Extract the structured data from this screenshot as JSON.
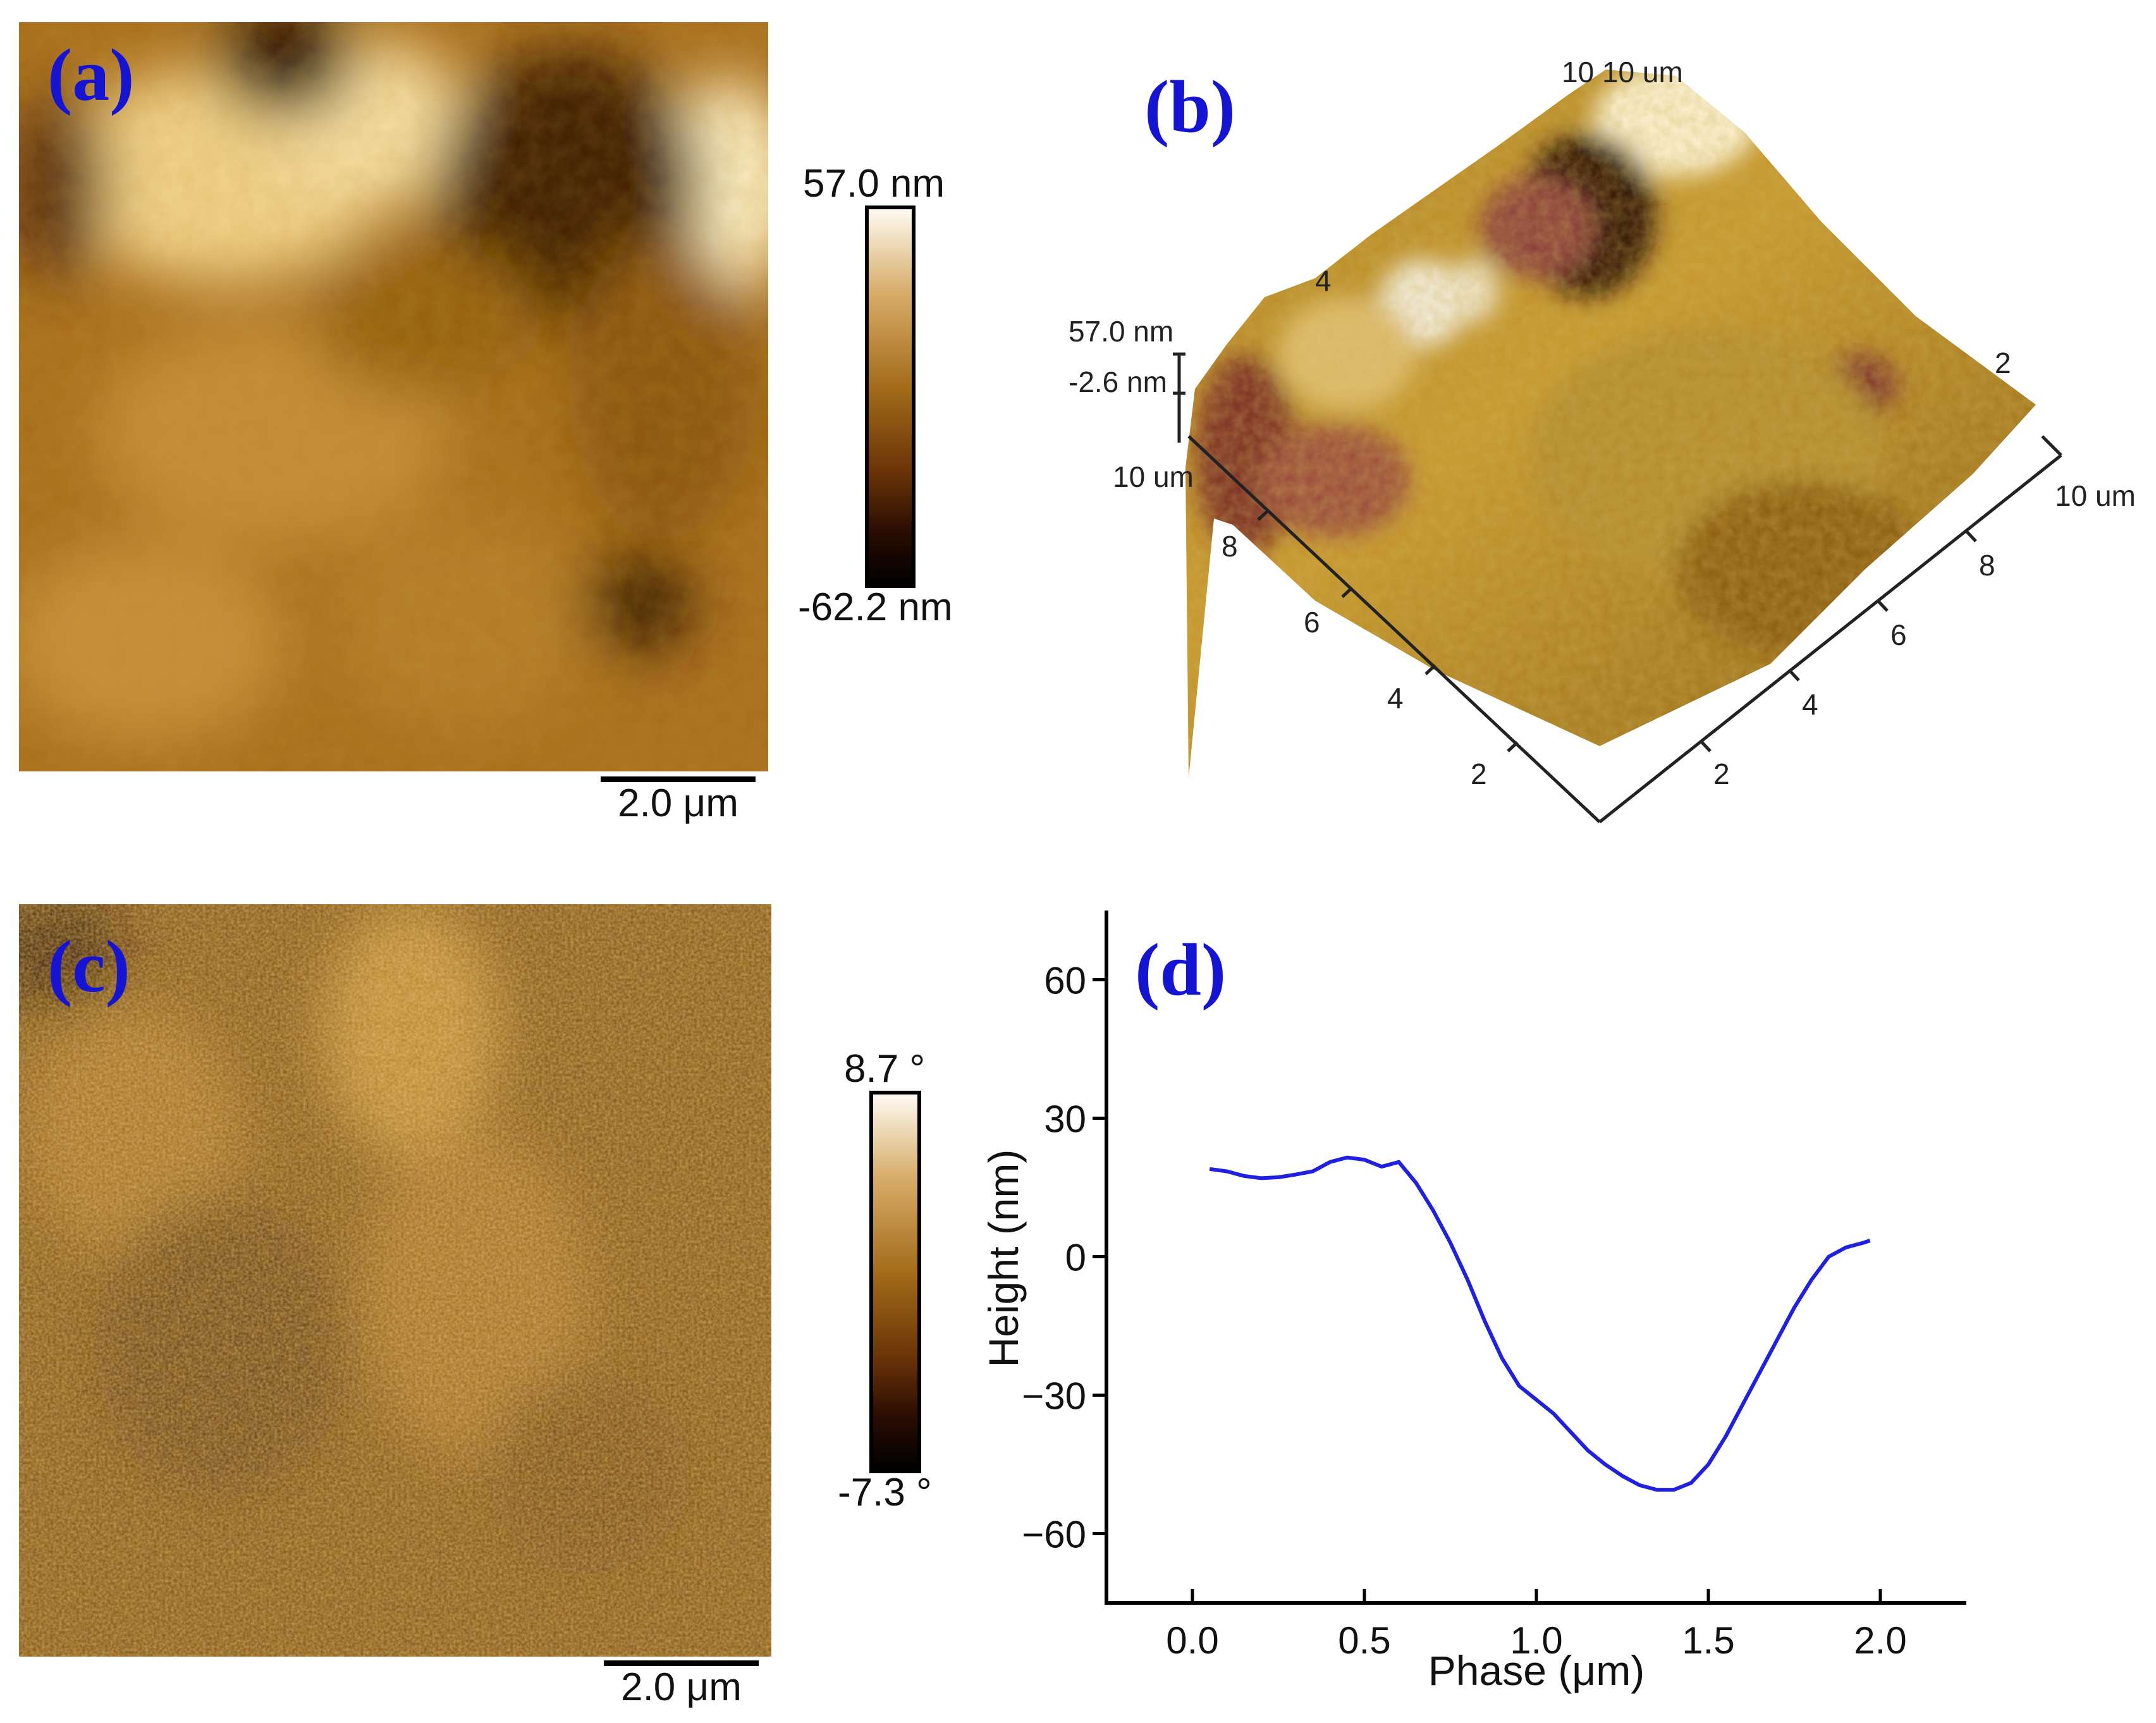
{
  "panels": {
    "a": {
      "label": "(a)",
      "scalebar": "2.0 μm",
      "colorbar_max": "57.0 nm",
      "colorbar_min": "-62.2 nm"
    },
    "b": {
      "label": "(b)",
      "z_max": "57.0 nm",
      "z_mid": "-2.6 nm",
      "corner_label": "10 10 um",
      "left_axis_end": "10 um",
      "right_axis_end": "10 um",
      "left_ticks": [
        "8",
        "6",
        "4",
        "2"
      ],
      "right_ticks": [
        "2",
        "4",
        "6",
        "8"
      ],
      "back_ticks": [
        "4",
        "2"
      ]
    },
    "c": {
      "label": "(c)",
      "scalebar": "2.0 μm",
      "colorbar_max": "8.7 °",
      "colorbar_min": "-7.3 °"
    },
    "d": {
      "label": "(d)"
    }
  },
  "palette": {
    "afm_dark": "#1a0a00",
    "afm_mid": "#a86a10",
    "afm_light": "#fff6e0",
    "curve": "#2020e0",
    "label_blue": "#1414d2"
  },
  "chart_data": {
    "type": "line",
    "xlabel": "Phase (μm)",
    "ylabel": "Height (nm)",
    "xlim": [
      -0.25,
      2.25
    ],
    "ylim": [
      -75,
      75
    ],
    "xticks": [
      "0.0",
      "0.5",
      "1.0",
      "1.5",
      "2.0"
    ],
    "yticks": [
      "-60",
      "-30",
      "0",
      "30",
      "60"
    ],
    "series": [
      {
        "x": [
          0.05,
          0.1,
          0.15,
          0.2,
          0.25,
          0.3,
          0.35,
          0.4,
          0.45,
          0.5,
          0.55,
          0.6,
          0.65,
          0.7,
          0.75,
          0.8,
          0.85,
          0.9,
          0.95,
          1.0,
          1.05,
          1.1,
          1.15,
          1.2,
          1.25,
          1.3,
          1.35,
          1.4,
          1.45,
          1.5,
          1.55,
          1.6,
          1.65,
          1.7,
          1.75,
          1.8,
          1.85,
          1.9,
          1.95,
          1.97
        ],
        "y": [
          19,
          18.5,
          17.5,
          17,
          17.2,
          17.8,
          18.5,
          20.5,
          21.5,
          21,
          19.5,
          20.5,
          16,
          10,
          3,
          -5,
          -14,
          -22,
          -28,
          -31,
          -34,
          -38,
          -42,
          -45,
          -47.5,
          -49.5,
          -50.5,
          -50.5,
          -49,
          -45,
          -39,
          -32,
          -25,
          -18,
          -11,
          -5,
          0,
          2,
          3,
          3.5
        ]
      }
    ]
  }
}
